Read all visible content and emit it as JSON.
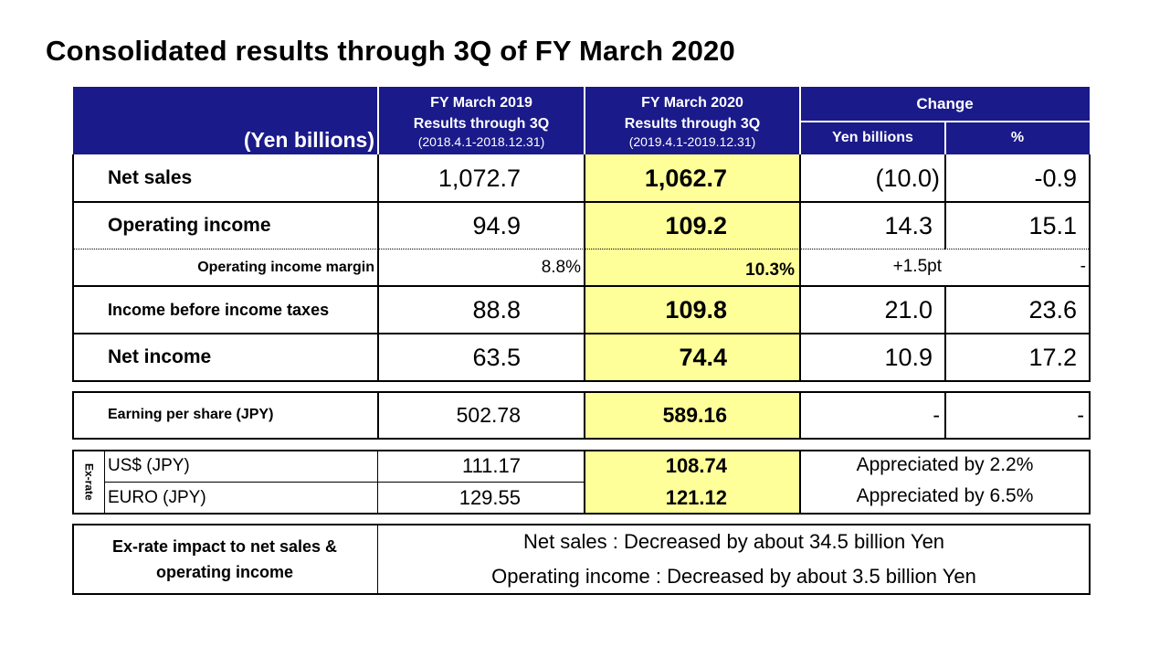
{
  "title": "Consolidated results through 3Q of FY March 2020",
  "header": {
    "unit_label": "(Yen billions)",
    "col_prev": {
      "line1": "FY March 2019",
      "line2": "Results through 3Q",
      "period": "(2018.4.1-2018.12.31)"
    },
    "col_curr": {
      "line1": "FY March 2020",
      "line2": "Results through 3Q",
      "period": "(2019.4.1-2019.12.31)"
    },
    "change": "Change",
    "change_yen": "Yen billions",
    "change_pct": "%"
  },
  "rows": [
    {
      "label": "Net sales",
      "prev": "1,072.7",
      "curr": "1,062.7",
      "chg": "(10.0)",
      "pct": "-0.9"
    },
    {
      "label": "Operating income",
      "prev": "94.9",
      "curr": "109.2",
      "chg": "14.3",
      "pct": "15.1"
    },
    {
      "label": "Operating income margin",
      "prev": "8.8%",
      "curr": "10.3%",
      "chg": "+1.5pt",
      "pct": "-"
    },
    {
      "label": "Income before income taxes",
      "prev": "88.8",
      "curr": "109.8",
      "chg": "21.0",
      "pct": "23.6"
    },
    {
      "label": "Net income",
      "prev": "63.5",
      "curr": "74.4",
      "chg": "10.9",
      "pct": "17.2"
    }
  ],
  "eps": {
    "label": "Earning per share (JPY)",
    "prev": "502.78",
    "curr": "589.16",
    "chg": "-",
    "pct": "-"
  },
  "exrate": {
    "side_label": "Ex-rate",
    "rows": [
      {
        "label": "US$ (JPY)",
        "prev": "111.17",
        "curr": "108.74",
        "note": "Appreciated by 2.2%"
      },
      {
        "label": "EURO (JPY)",
        "prev": "129.55",
        "curr": "121.12",
        "note": "Appreciated by 6.5%"
      }
    ]
  },
  "impact": {
    "label": "Ex-rate impact to net sales & operating income",
    "line1": "Net sales : Decreased by about 34.5 billion Yen",
    "line2": "Operating income : Decreased by about 3.5 billion Yen"
  },
  "colors": {
    "header_bg": "#1a1a8a",
    "highlight": "#ffff99"
  }
}
